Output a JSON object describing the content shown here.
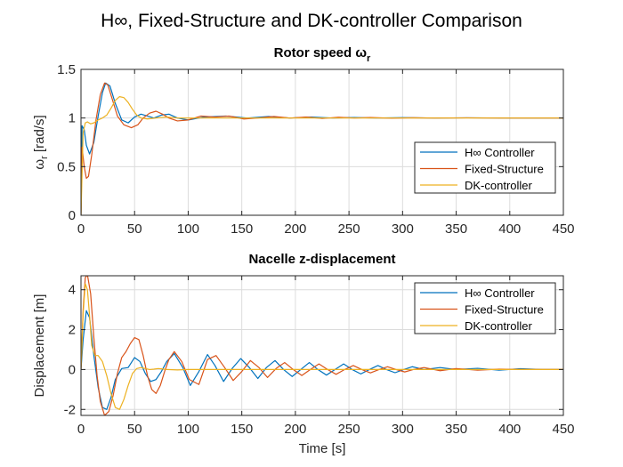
{
  "figure": {
    "suptitle": "H∞, Fixed-Structure and DK-controller Comparison"
  },
  "colors": {
    "hinf": "#0072BD",
    "fixed": "#D95319",
    "dk": "#EDB120",
    "grid": "#dcdcdc",
    "axis": "#262626"
  },
  "chart_data": [
    {
      "type": "line",
      "title": "Rotor speed ω",
      "title_subscript": "r",
      "ylabel": "ω",
      "ylabel_subscript": "r",
      "ylabel_unit": "[rad/s]",
      "xlabel": "",
      "xlim": [
        0,
        450
      ],
      "ylim": [
        0,
        1.5
      ],
      "xticks": [
        0,
        50,
        100,
        150,
        200,
        250,
        300,
        350,
        400,
        450
      ],
      "yticks": [
        0,
        0.5,
        1,
        1.5
      ],
      "grid": true,
      "legend": "right",
      "series": [
        {
          "name": "H∞ Controller",
          "color_key": "hinf",
          "x": [
            0,
            1,
            3,
            5,
            8,
            12,
            16,
            20,
            23,
            27,
            32,
            38,
            44,
            50,
            56,
            62,
            68,
            75,
            82,
            90,
            100,
            115,
            135,
            155,
            175,
            195,
            215,
            235,
            255,
            275,
            300,
            330,
            360,
            400,
            450
          ],
          "y": [
            0,
            0.92,
            0.88,
            0.72,
            0.63,
            0.75,
            1.02,
            1.26,
            1.36,
            1.33,
            1.15,
            0.98,
            0.95,
            1.01,
            1.04,
            1.02,
            1.0,
            1.03,
            1.04,
            1.0,
            0.98,
            1.01,
            1.02,
            1.0,
            1.015,
            1.0,
            1.01,
            1.0,
            1.005,
            1.0,
            1.004,
            1.0,
            1.002,
            1.0,
            1.0
          ]
        },
        {
          "name": "Fixed-Structure",
          "color_key": "fixed",
          "x": [
            0,
            1,
            3,
            5,
            7,
            10,
            14,
            18,
            22,
            25,
            29,
            34,
            40,
            47,
            53,
            58,
            64,
            70,
            76,
            82,
            90,
            100,
            112,
            125,
            138,
            152,
            165,
            180,
            195,
            210,
            225,
            240,
            255,
            270,
            290,
            310,
            330,
            360,
            390,
            420,
            450
          ],
          "y": [
            0,
            0.7,
            0.5,
            0.38,
            0.4,
            0.62,
            0.98,
            1.24,
            1.36,
            1.34,
            1.2,
            1.02,
            0.93,
            0.9,
            0.93,
            1.0,
            1.05,
            1.07,
            1.04,
            1.0,
            0.97,
            0.98,
            1.02,
            1.01,
            1.02,
            0.99,
            1.0,
            1.015,
            1.0,
            1.01,
            0.995,
            1.008,
            1.0,
            1.005,
            0.998,
            1.003,
            1.0,
            1.002,
            1.0,
            1.0,
            1.0
          ]
        },
        {
          "name": "DK-controller",
          "color_key": "dk",
          "x": [
            0,
            2,
            4,
            6,
            9,
            12,
            16,
            20,
            24,
            28,
            32,
            36,
            40,
            44,
            48,
            52,
            56,
            62,
            70,
            80,
            90,
            100,
            120,
            150,
            200,
            260,
            320,
            380,
            450
          ],
          "y": [
            0,
            0.85,
            0.95,
            0.96,
            0.94,
            0.95,
            0.98,
            1.0,
            1.03,
            1.1,
            1.18,
            1.22,
            1.21,
            1.16,
            1.09,
            1.03,
            1.0,
            0.99,
            1.0,
            1.01,
            1.0,
            1.0,
            1.0,
            1.0,
            1.0,
            1.0,
            1.0,
            1.0,
            1.0
          ]
        }
      ]
    },
    {
      "type": "line",
      "title": "Nacelle z-displacement",
      "ylabel": "Displacement [m]",
      "xlabel": "Time [s]",
      "xlim": [
        0,
        450
      ],
      "ylim": [
        -2.3,
        4.7
      ],
      "xticks": [
        0,
        50,
        100,
        150,
        200,
        250,
        300,
        350,
        400,
        450
      ],
      "yticks": [
        -2,
        0,
        2,
        4
      ],
      "grid": true,
      "legend": "top-right",
      "series": [
        {
          "name": "H∞ Controller",
          "color_key": "hinf",
          "x": [
            0,
            2,
            5,
            8,
            12,
            16,
            20,
            24,
            28,
            32,
            38,
            44,
            50,
            55,
            60,
            65,
            70,
            75,
            80,
            87,
            95,
            102,
            110,
            118,
            125,
            133,
            141,
            149,
            157,
            165,
            173,
            181,
            189,
            197,
            205,
            213,
            221,
            229,
            237,
            245,
            253,
            261,
            269,
            277,
            285,
            293,
            301,
            309,
            320,
            335,
            350,
            370,
            390,
            410,
            430,
            450
          ],
          "y": [
            0,
            1.5,
            2.95,
            2.6,
            0.7,
            -0.9,
            -1.9,
            -2.0,
            -1.4,
            -0.5,
            0.05,
            0.1,
            0.6,
            0.4,
            -0.2,
            -0.6,
            -0.5,
            -0.1,
            0.4,
            0.8,
            0.1,
            -0.8,
            -0.1,
            0.75,
            0.2,
            -0.6,
            0.05,
            0.55,
            0.1,
            -0.45,
            0.1,
            0.45,
            0.0,
            -0.35,
            0.0,
            0.35,
            0.0,
            -0.28,
            0.0,
            0.28,
            0.0,
            -0.22,
            0.0,
            0.2,
            0.0,
            -0.16,
            0.0,
            0.14,
            0.0,
            0.1,
            0.0,
            0.06,
            -0.03,
            0.04,
            0.0,
            0.0
          ]
        },
        {
          "name": "Fixed-Structure",
          "color_key": "fixed",
          "x": [
            0,
            2,
            4,
            6,
            9,
            12,
            15,
            18,
            22,
            26,
            30,
            34,
            38,
            42,
            46,
            50,
            54,
            58,
            62,
            66,
            70,
            74,
            78,
            82,
            87,
            94,
            101,
            110,
            118,
            126,
            134,
            142,
            150,
            158,
            166,
            174,
            182,
            190,
            198,
            206,
            214,
            222,
            230,
            238,
            246,
            254,
            262,
            270,
            278,
            286,
            294,
            302,
            310,
            320,
            335,
            350,
            370,
            390,
            410,
            430,
            450
          ],
          "y": [
            0,
            3.0,
            4.6,
            4.75,
            3.8,
            1.6,
            -0.3,
            -1.6,
            -2.3,
            -2.1,
            -1.3,
            -0.2,
            0.6,
            0.9,
            1.3,
            1.6,
            1.5,
            0.7,
            -0.3,
            -1.0,
            -1.2,
            -0.8,
            -0.1,
            0.5,
            0.9,
            0.4,
            -0.5,
            -0.75,
            0.5,
            0.7,
            0.1,
            -0.55,
            -0.1,
            0.45,
            0.1,
            -0.4,
            0.05,
            0.35,
            0.0,
            -0.3,
            0.0,
            0.28,
            0.0,
            -0.24,
            0.0,
            0.2,
            0.0,
            -0.17,
            0.0,
            0.14,
            0.0,
            -0.12,
            0.0,
            0.1,
            -0.06,
            0.05,
            -0.03,
            0.02,
            0.0,
            0.0,
            0.0
          ]
        },
        {
          "name": "DK-controller",
          "color_key": "dk",
          "x": [
            0,
            2,
            4,
            6,
            8,
            10,
            13,
            16,
            20,
            24,
            28,
            32,
            36,
            40,
            44,
            48,
            52,
            56,
            60,
            64,
            68,
            72,
            76,
            80,
            90,
            100,
            120,
            150,
            200,
            260,
            320,
            380,
            450
          ],
          "y": [
            0,
            2.8,
            4.3,
            4.0,
            2.7,
            1.2,
            0.7,
            0.7,
            0.4,
            -0.3,
            -1.2,
            -1.9,
            -2.0,
            -1.5,
            -0.8,
            -0.2,
            0.05,
            0.1,
            0.05,
            0.0,
            0.02,
            0.05,
            0.03,
            0.0,
            -0.02,
            0.0,
            0.0,
            0.0,
            0.0,
            0.0,
            0.0,
            0.0,
            0.0
          ]
        }
      ]
    }
  ]
}
